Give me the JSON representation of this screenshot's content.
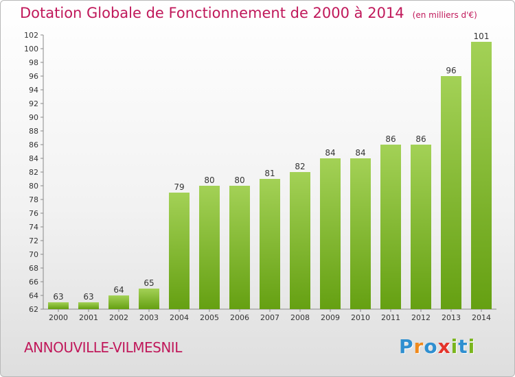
{
  "chart_data": {
    "type": "bar",
    "title": "Dotation Globale de Fonctionnement de 2000 à 2014",
    "subtitle": "(en milliers d'€)",
    "categories": [
      "2000",
      "2001",
      "2002",
      "2003",
      "2004",
      "2005",
      "2006",
      "2007",
      "2008",
      "2009",
      "2010",
      "2011",
      "2012",
      "2013",
      "2014"
    ],
    "values": [
      63,
      63,
      64,
      65,
      79,
      80,
      80,
      81,
      82,
      84,
      84,
      86,
      86,
      96,
      101
    ],
    "ylim": [
      62,
      102
    ],
    "ytick_step": 2,
    "xlabel": "",
    "ylabel": "",
    "grid": false,
    "bar_color_top": "#a3d156",
    "bar_color_bottom": "#65a012"
  },
  "footer": {
    "commune": "ANNOUVILLE-VILMESNIL",
    "logo_letters": [
      "P",
      "r",
      "o",
      "x",
      "i",
      "t",
      "i"
    ],
    "logo_colors": [
      "#2f8fd0",
      "#f08a1c",
      "#2f8fd0",
      "#e4342b",
      "#7ab51d",
      "#2f8fd0",
      "#7ab51d"
    ]
  }
}
